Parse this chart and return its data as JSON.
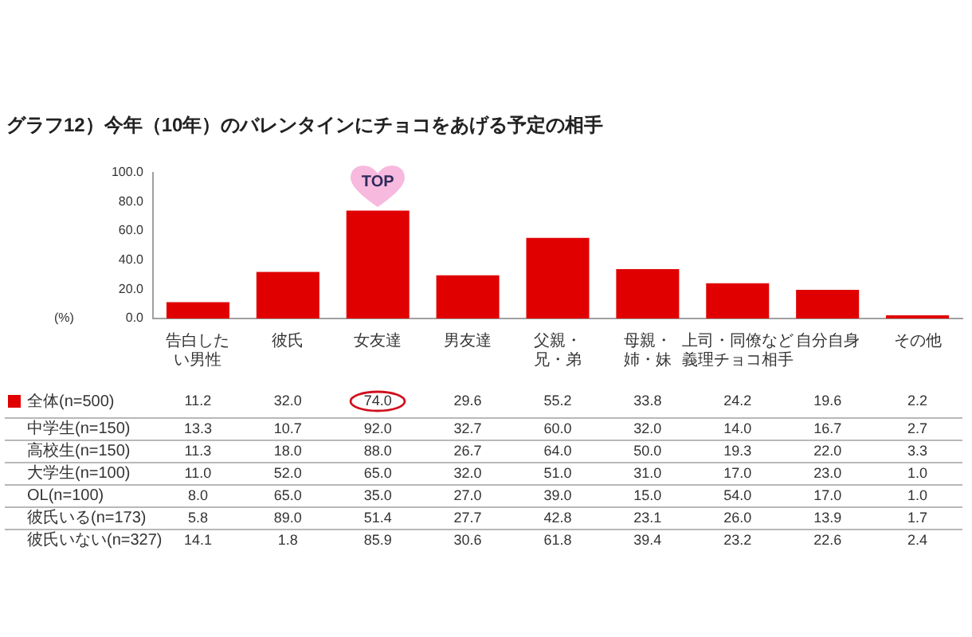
{
  "chart_data": [
    {
      "type": "bar",
      "title": "グラフ12）今年（10年）のバレンタインにチョコをあげる予定の相手",
      "ylabel": "(%)",
      "categories": [
        "告白したい男性",
        "彼氏",
        "女友達",
        "男友達",
        "父親・兄・弟",
        "母親・姉・妹",
        "上司・同僚など義理チョコ相手",
        "自分自身",
        "その他"
      ],
      "series": [
        {
          "name": "全体(n=500)",
          "color": "#e00000",
          "values": [
            11.2,
            32.0,
            74.0,
            29.6,
            55.2,
            33.8,
            24.2,
            19.6,
            2.2
          ],
          "value_labels": [
            "11.2",
            "32.0",
            "74.0",
            "29.6",
            "55.2",
            "33.8",
            "24.2",
            "19.6",
            "2.2"
          ]
        }
      ],
      "ylim": [
        0,
        100
      ],
      "yticks": [
        {
          "value": 0,
          "label": "0.0"
        },
        {
          "value": 20,
          "label": "20.0"
        },
        {
          "value": 40,
          "label": "40.0"
        },
        {
          "value": 60,
          "label": "60.0"
        },
        {
          "value": 80,
          "label": "80.0"
        },
        {
          "value": 100,
          "label": "100.0"
        }
      ],
      "annotations": [
        {
          "text": "TOP",
          "x": "女友達",
          "y": 74
        }
      ]
    },
    {
      "type": "heatmap",
      "tick_labels": "y",
      "categories": [
        "告白したい男性",
        "彼氏",
        "女友達",
        "男友達",
        "父親・兄・弟",
        "母親・姉・妹",
        "上司・同僚など義理チョコ相手",
        "自分自身",
        "その他"
      ],
      "y_categories": [
        "中学生(n=150)",
        "高校生(n=150)",
        "大学生(n=100)",
        "OL(n=100)",
        "彼氏いる(n=173)",
        "彼氏いない(n=327)"
      ],
      "cells": [
        [
          13.3,
          10.7,
          92.0,
          32.7,
          60.0,
          32.0,
          14.0,
          16.7,
          2.7
        ],
        [
          11.3,
          18.0,
          88.0,
          26.7,
          64.0,
          50.0,
          19.3,
          22.0,
          3.3
        ],
        [
          11.0,
          52.0,
          65.0,
          32.0,
          51.0,
          31.0,
          17.0,
          23.0,
          1.0
        ],
        [
          8.0,
          65.0,
          35.0,
          27.0,
          39.0,
          15.0,
          54.0,
          17.0,
          1.0
        ],
        [
          5.8,
          89.0,
          51.4,
          27.7,
          42.8,
          23.1,
          26.0,
          13.9,
          1.7
        ],
        [
          14.1,
          1.8,
          85.9,
          30.6,
          61.8,
          39.4,
          23.2,
          22.6,
          2.4
        ]
      ],
      "cell_labels": [
        [
          "13.3",
          "10.7",
          "92.0",
          "32.7",
          "60.0",
          "32.0",
          "14.0",
          "16.7",
          "2.7"
        ],
        [
          "11.3",
          "18.0",
          "88.0",
          "26.7",
          "64.0",
          "50.0",
          "19.3",
          "22.0",
          "3.3"
        ],
        [
          "11.0",
          "52.0",
          "65.0",
          "32.0",
          "51.0",
          "31.0",
          "17.0",
          "23.0",
          "1.0"
        ],
        [
          "8.0",
          "65.0",
          "35.0",
          "27.0",
          "39.0",
          "15.0",
          "54.0",
          "17.0",
          "1.0"
        ],
        [
          "5.8",
          "89.0",
          "51.4",
          "27.7",
          "42.8",
          "23.1",
          "26.0",
          "13.9",
          "1.7"
        ],
        [
          "14.1",
          "1.8",
          "85.9",
          "30.6",
          "61.8",
          "39.4",
          "23.2",
          "22.6",
          "2.4"
        ]
      ]
    }
  ]
}
